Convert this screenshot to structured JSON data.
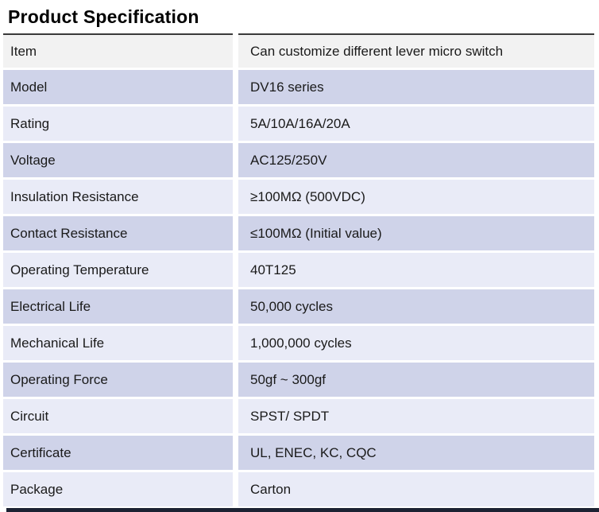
{
  "page": {
    "title": "Product Specification"
  },
  "table": {
    "rows": [
      {
        "label": "Item",
        "value": "Can customize different lever micro switch",
        "variant": "header"
      },
      {
        "label": "Model",
        "value": "DV16 series",
        "variant": "dark"
      },
      {
        "label": "Rating",
        "value": "5A/10A/16A/20A",
        "variant": "light"
      },
      {
        "label": "Voltage",
        "value": "AC125/250V",
        "variant": "dark"
      },
      {
        "label": "Insulation Resistance",
        "value": "≥100MΩ (500VDC)",
        "variant": "light"
      },
      {
        "label": "Contact Resistance",
        "value": "≤100MΩ (Initial value)",
        "variant": "dark"
      },
      {
        "label": "Operating Temperature",
        "value": "40T125",
        "variant": "light"
      },
      {
        "label": "Electrical Life",
        "value": "50,000 cycles",
        "variant": "dark"
      },
      {
        "label": "Mechanical Life",
        "value": "1,000,000 cycles",
        "variant": "light"
      },
      {
        "label": "Operating Force",
        "value": "50gf ~ 300gf",
        "variant": "dark"
      },
      {
        "label": "Circuit",
        "value": "SPST/ SPDT",
        "variant": "light"
      },
      {
        "label": "Certificate",
        "value": "UL, ENEC, KC, CQC",
        "variant": "dark"
      },
      {
        "label": "Package",
        "value": "Carton",
        "variant": "light"
      }
    ]
  },
  "colors": {
    "header_row_bg": "#f2f2f2",
    "dark_row_bg": "#cfd3e9",
    "light_row_bg": "#e9ebf7",
    "top_border": "#3a3a3a",
    "bottom_bar": "#1c2233",
    "text": "#1a1a1a"
  }
}
